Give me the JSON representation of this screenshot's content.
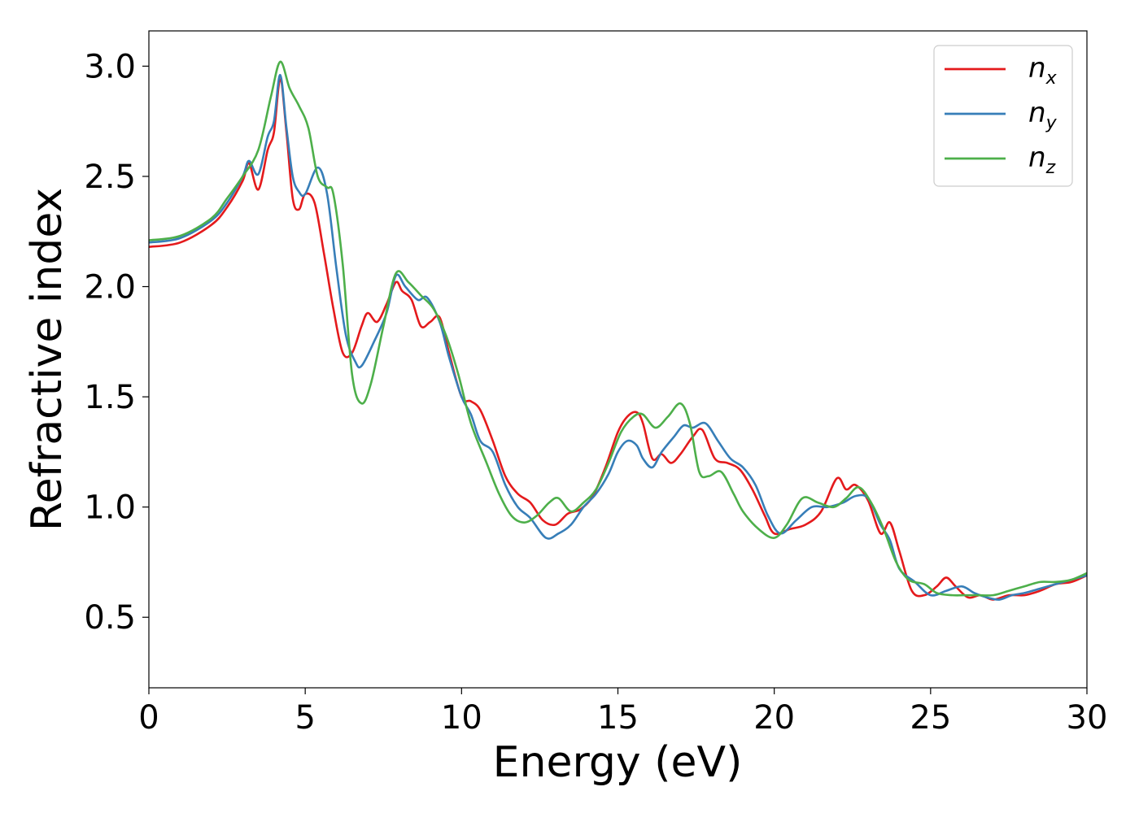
{
  "chart_data": {
    "type": "line",
    "title": "",
    "xlabel": "Energy (eV)",
    "ylabel": "Refractive index",
    "xlim": [
      0,
      30
    ],
    "ylim": [
      0.18,
      3.16
    ],
    "xticks": [
      0,
      5,
      10,
      15,
      20,
      25,
      30
    ],
    "xtick_labels": [
      "0",
      "5",
      "10",
      "15",
      "20",
      "25",
      "30"
    ],
    "yticks": [
      0.5,
      1.0,
      1.5,
      2.0,
      2.5,
      3.0
    ],
    "ytick_labels": [
      "0.5",
      "1.0",
      "1.5",
      "2.0",
      "2.5",
      "3.0"
    ],
    "grid": false,
    "legend_position": "top-right",
    "series": [
      {
        "name": "n_x",
        "label_base": "n",
        "label_sub": "x",
        "color": "#e41a1c",
        "x": [
          0,
          1,
          2,
          2.5,
          3,
          3.2,
          3.5,
          3.8,
          4.0,
          4.2,
          4.4,
          4.6,
          4.8,
          5.0,
          5.3,
          5.6,
          5.9,
          6.2,
          6.5,
          6.8,
          7.0,
          7.3,
          7.6,
          7.9,
          8.1,
          8.4,
          8.7,
          9.0,
          9.3,
          9.6,
          10.0,
          10.3,
          10.6,
          11.0,
          11.4,
          11.8,
          12.2,
          12.6,
          13.0,
          13.4,
          13.8,
          14.2,
          14.6,
          15.0,
          15.3,
          15.6,
          15.8,
          16.1,
          16.4,
          16.7,
          17.0,
          17.4,
          17.7,
          18.1,
          18.5,
          18.9,
          19.3,
          19.7,
          20.0,
          20.5,
          21.0,
          21.5,
          22.0,
          22.3,
          22.6,
          23.0,
          23.4,
          23.7,
          24.0,
          24.4,
          24.8,
          25.2,
          25.5,
          25.8,
          26.2,
          26.6,
          27.0,
          27.5,
          28.0,
          28.5,
          29.0,
          29.5,
          30.0
        ],
        "y": [
          2.18,
          2.2,
          2.28,
          2.36,
          2.48,
          2.56,
          2.44,
          2.62,
          2.7,
          2.94,
          2.7,
          2.4,
          2.35,
          2.42,
          2.38,
          2.15,
          1.9,
          1.7,
          1.7,
          1.82,
          1.88,
          1.84,
          1.92,
          2.02,
          1.98,
          1.94,
          1.82,
          1.84,
          1.86,
          1.7,
          1.5,
          1.48,
          1.44,
          1.3,
          1.14,
          1.06,
          1.02,
          0.94,
          0.92,
          0.97,
          0.99,
          1.05,
          1.18,
          1.34,
          1.41,
          1.43,
          1.38,
          1.22,
          1.24,
          1.2,
          1.24,
          1.32,
          1.35,
          1.22,
          1.2,
          1.17,
          1.08,
          0.96,
          0.88,
          0.9,
          0.92,
          0.98,
          1.13,
          1.08,
          1.1,
          1.03,
          0.88,
          0.93,
          0.8,
          0.62,
          0.6,
          0.64,
          0.68,
          0.64,
          0.59,
          0.6,
          0.58,
          0.6,
          0.6,
          0.62,
          0.65,
          0.66,
          0.69
        ]
      },
      {
        "name": "n_y",
        "label_base": "n",
        "label_sub": "y",
        "color": "#377eb8",
        "x": [
          0,
          1,
          2,
          2.5,
          3,
          3.2,
          3.5,
          3.8,
          4.0,
          4.2,
          4.4,
          4.6,
          4.8,
          5.0,
          5.4,
          5.7,
          6.0,
          6.3,
          6.6,
          6.8,
          7.2,
          7.6,
          7.9,
          8.2,
          8.6,
          8.9,
          9.3,
          9.6,
          10.0,
          10.3,
          10.6,
          11.0,
          11.4,
          11.8,
          12.2,
          12.7,
          13.1,
          13.5,
          13.9,
          14.3,
          14.7,
          15.0,
          15.3,
          15.6,
          15.8,
          16.1,
          16.4,
          16.8,
          17.1,
          17.4,
          17.8,
          18.2,
          18.6,
          19.0,
          19.4,
          19.8,
          20.2,
          20.7,
          21.2,
          21.7,
          22.2,
          22.6,
          23.0,
          23.4,
          23.7,
          24.0,
          24.5,
          25.0,
          25.5,
          26.0,
          26.4,
          26.8,
          27.2,
          27.6,
          28.0,
          28.5,
          29.0,
          29.5,
          30.0
        ],
        "y": [
          2.2,
          2.22,
          2.3,
          2.38,
          2.5,
          2.57,
          2.51,
          2.68,
          2.75,
          2.96,
          2.72,
          2.5,
          2.43,
          2.42,
          2.54,
          2.42,
          2.08,
          1.78,
          1.66,
          1.64,
          1.75,
          1.88,
          2.05,
          2.0,
          1.94,
          1.95,
          1.84,
          1.68,
          1.5,
          1.42,
          1.3,
          1.25,
          1.1,
          1.0,
          0.95,
          0.86,
          0.88,
          0.92,
          1.0,
          1.06,
          1.15,
          1.25,
          1.3,
          1.28,
          1.22,
          1.18,
          1.25,
          1.32,
          1.37,
          1.36,
          1.38,
          1.3,
          1.22,
          1.18,
          1.1,
          0.96,
          0.88,
          0.94,
          1.0,
          1.0,
          1.02,
          1.05,
          1.04,
          0.92,
          0.85,
          0.72,
          0.66,
          0.6,
          0.62,
          0.64,
          0.61,
          0.59,
          0.58,
          0.6,
          0.61,
          0.63,
          0.65,
          0.67,
          0.69
        ]
      },
      {
        "name": "n_z",
        "label_base": "n",
        "label_sub": "z",
        "color": "#4daf4a",
        "x": [
          0,
          1,
          2,
          2.5,
          3,
          3.5,
          3.9,
          4.2,
          4.5,
          4.8,
          5.1,
          5.4,
          5.7,
          5.9,
          6.2,
          6.5,
          6.8,
          7.1,
          7.5,
          7.9,
          8.3,
          8.7,
          9.1,
          9.5,
          9.9,
          10.3,
          10.8,
          11.2,
          11.6,
          12.0,
          12.4,
          12.8,
          13.1,
          13.5,
          13.9,
          14.3,
          14.7,
          15.1,
          15.5,
          15.8,
          16.2,
          16.6,
          17.0,
          17.3,
          17.6,
          17.9,
          18.3,
          18.7,
          19.0,
          19.5,
          20.0,
          20.4,
          20.9,
          21.4,
          21.9,
          22.3,
          22.7,
          23.1,
          23.5,
          23.9,
          24.3,
          24.8,
          25.2,
          25.7,
          26.1,
          26.5,
          27.0,
          27.5,
          28.0,
          28.5,
          29.0,
          29.5,
          30.0
        ],
        "y": [
          2.21,
          2.23,
          2.31,
          2.4,
          2.5,
          2.62,
          2.86,
          3.02,
          2.9,
          2.82,
          2.72,
          2.5,
          2.45,
          2.42,
          2.1,
          1.6,
          1.47,
          1.56,
          1.82,
          2.06,
          2.02,
          1.96,
          1.9,
          1.78,
          1.6,
          1.38,
          1.2,
          1.06,
          0.96,
          0.93,
          0.96,
          1.02,
          1.04,
          0.98,
          1.02,
          1.08,
          1.2,
          1.34,
          1.41,
          1.42,
          1.36,
          1.41,
          1.47,
          1.38,
          1.16,
          1.14,
          1.16,
          1.06,
          0.98,
          0.9,
          0.86,
          0.92,
          1.04,
          1.02,
          1.0,
          1.04,
          1.09,
          1.02,
          0.9,
          0.75,
          0.67,
          0.65,
          0.61,
          0.6,
          0.6,
          0.6,
          0.6,
          0.62,
          0.64,
          0.66,
          0.66,
          0.67,
          0.7
        ]
      }
    ]
  }
}
